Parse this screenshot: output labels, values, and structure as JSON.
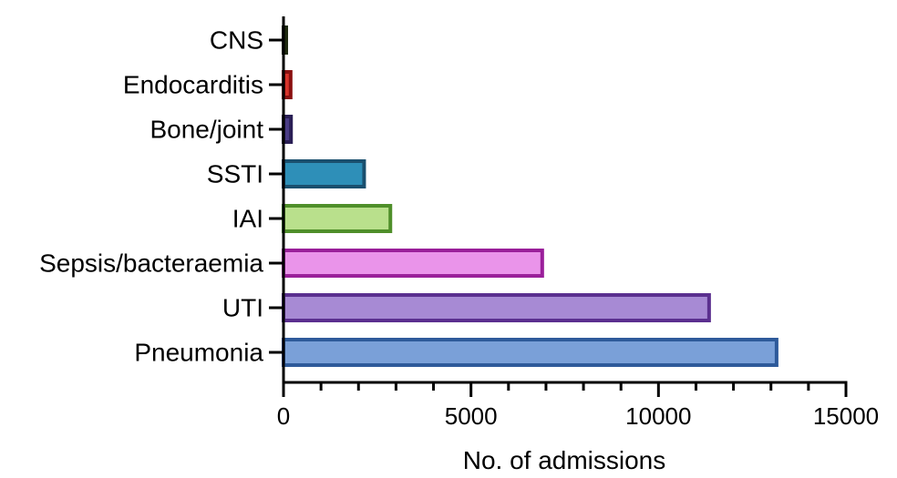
{
  "chart_data": {
    "type": "bar",
    "orientation": "horizontal",
    "categories": [
      "CNS",
      "Endocarditis",
      "Bone/joint",
      "SSTI",
      "IAI",
      "Sepsis/bacteraemia",
      "UTI",
      "Pneumonia"
    ],
    "values": [
      40,
      190,
      200,
      2150,
      2850,
      6900,
      11350,
      13150
    ],
    "fill_colors": [
      "#5d6b3a",
      "#d9342b",
      "#4a3c86",
      "#2e8fb8",
      "#b9e08c",
      "#ea94ea",
      "#a78ad4",
      "#7aa0d8"
    ],
    "stroke_colors": [
      "#1f2a10",
      "#8a1010",
      "#2a1f55",
      "#1a4f6e",
      "#4f8f2a",
      "#9a1f9a",
      "#5b2f8f",
      "#2e5a9a"
    ],
    "title": "",
    "xlabel": "No. of admissions",
    "ylabel": "",
    "xlim": [
      0,
      15000
    ],
    "xticks": [
      0,
      5000,
      10000,
      15000
    ],
    "xtick_labels": [
      "0",
      "5000",
      "10000",
      "15000"
    ],
    "minor_ticks_per_major": 5,
    "grid": false,
    "legend": "none"
  }
}
